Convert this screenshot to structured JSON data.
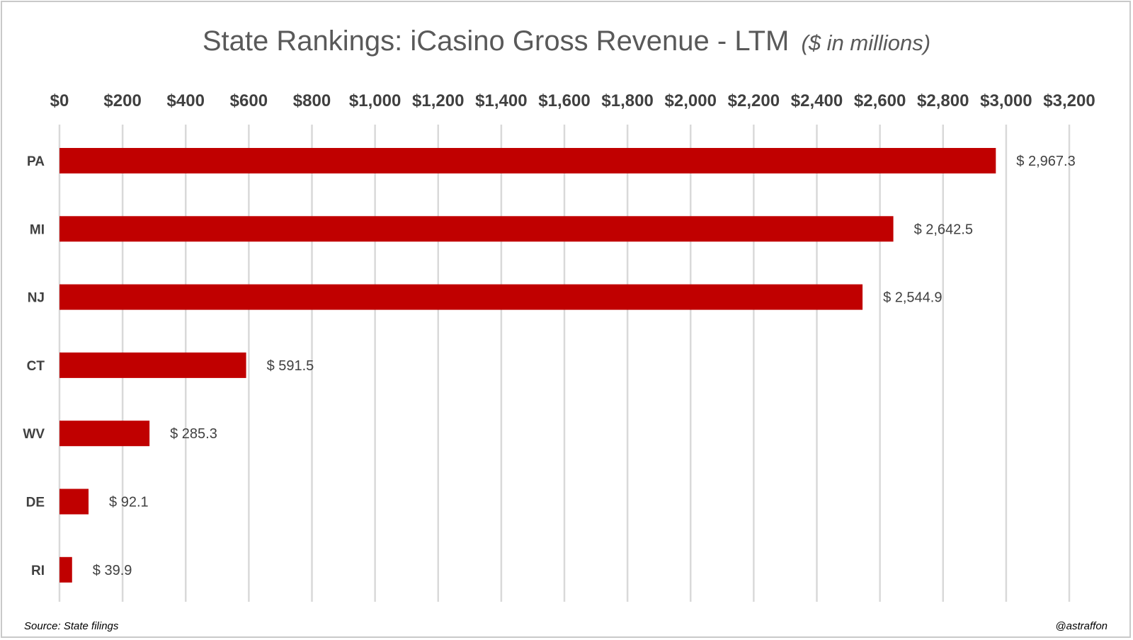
{
  "chart_data": {
    "type": "bar",
    "orientation": "horizontal",
    "title": "State Rankings: iCasino Gross Revenue - LTM",
    "subtitle": "($ in millions)",
    "categories": [
      "PA",
      "MI",
      "NJ",
      "CT",
      "WV",
      "DE",
      "RI"
    ],
    "values": [
      2967.3,
      2642.5,
      2544.9,
      591.5,
      285.3,
      92.1,
      39.9
    ],
    "data_labels": [
      "$ 2,967.3",
      "$ 2,642.5",
      "$ 2,544.9",
      "$ 591.5",
      "$ 285.3",
      "$ 92.1",
      "$ 39.9"
    ],
    "x_ticks": [
      "$0",
      "$200",
      "$400",
      "$600",
      "$800",
      "$1,000",
      "$1,200",
      "$1,400",
      "$1,600",
      "$1,800",
      "$2,000",
      "$2,200",
      "$2,400",
      "$2,600",
      "$2,800",
      "$3,000",
      "$3,200"
    ],
    "xlim": [
      0,
      3200
    ],
    "x_axis_position": "top",
    "grid": true,
    "bar_color": "#c00000"
  },
  "footer": {
    "source": "Source: State filings",
    "credit": "@astraffon"
  }
}
